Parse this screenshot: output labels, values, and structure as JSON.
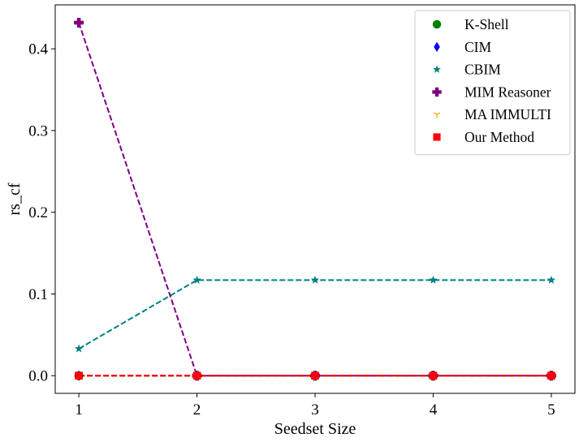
{
  "chart_data": {
    "type": "line",
    "xlabel": "Seedset Size",
    "ylabel": "rs_cf",
    "x": [
      1,
      2,
      3,
      4,
      5
    ],
    "xticks": [
      1,
      2,
      3,
      4,
      5
    ],
    "yticks": [
      0.0,
      0.1,
      0.2,
      0.3,
      0.4
    ],
    "ytick_labels": [
      "0.0",
      "0.1",
      "0.2",
      "0.3",
      "0.4"
    ],
    "xlim": [
      0.8,
      5.2
    ],
    "ylim": [
      -0.0216,
      0.4538
    ],
    "grid": false,
    "legend_position": "top-right",
    "series": [
      {
        "name": "K-Shell",
        "values": [
          0,
          0,
          0,
          0,
          0
        ],
        "color": "#008000",
        "marker": "circle",
        "line": "dashed"
      },
      {
        "name": "CIM",
        "values": [
          0,
          0,
          0,
          0,
          0
        ],
        "color": "#0000ff",
        "marker": "diamond",
        "line": "dashed"
      },
      {
        "name": "CBIM",
        "values": [
          0.033,
          0.117,
          0.117,
          0.117,
          0.117
        ],
        "color": "#008080",
        "marker": "star",
        "line": "dashed"
      },
      {
        "name": "MIM Reasoner",
        "values": [
          0.432,
          0,
          0,
          0,
          0
        ],
        "color": "#800080",
        "marker": "plus",
        "line": "dashed"
      },
      {
        "name": "MA IMMULTI",
        "values": [
          0,
          0,
          0,
          0,
          0
        ],
        "color": "#ffa500",
        "marker": "tri",
        "line": "dashed"
      },
      {
        "name": "Our Method",
        "values": [
          0,
          0,
          0,
          0,
          0
        ],
        "color": "#ff0000",
        "marker": "square",
        "line": "dashed"
      }
    ]
  }
}
